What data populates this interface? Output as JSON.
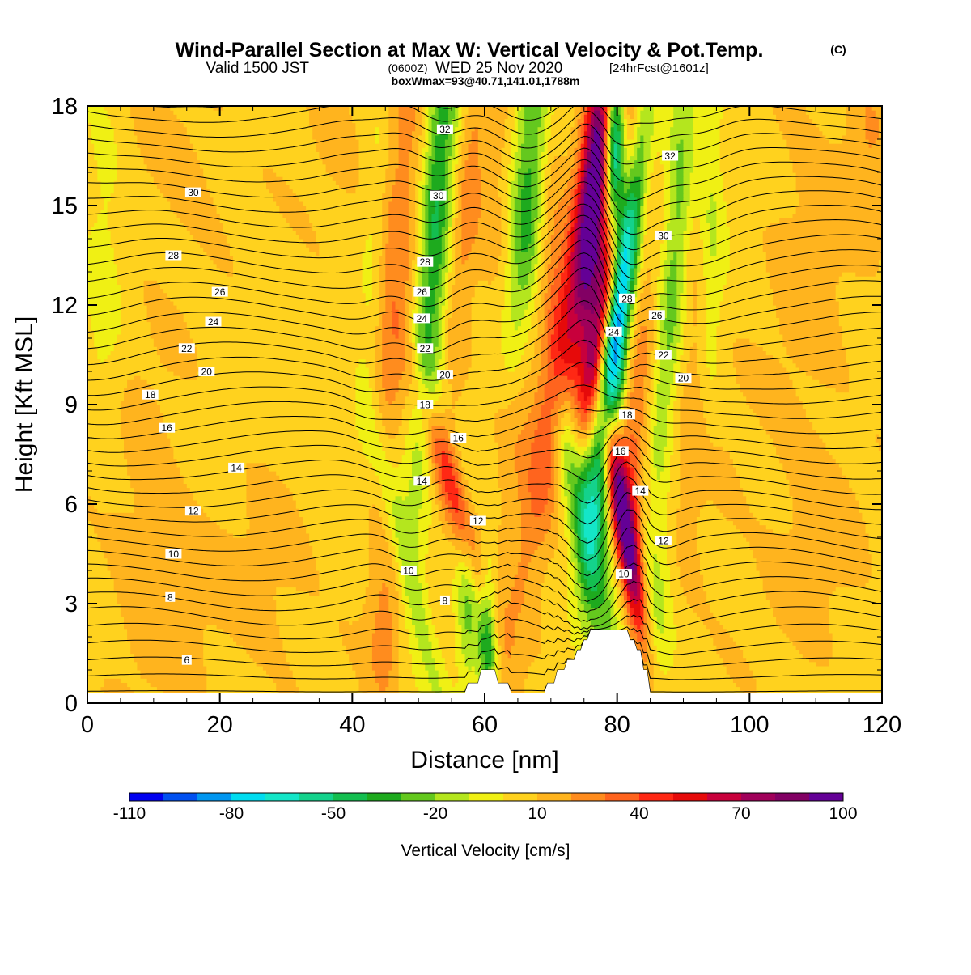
{
  "header": {
    "title_main": "Wind-Parallel Section at Max W: Vertical Velocity & Pot.Temp.",
    "title_tag": "(C)",
    "subtitle_valid": "Valid 1500 JST",
    "subtitle_utc": "(0600Z)",
    "subtitle_date": "WED 25 Nov 2020",
    "subtitle_fcst": "[24hrFcst@1601z]",
    "box_info": "boxWmax=93@40.71,141.01,1788m"
  },
  "chart_data": {
    "type": "heatmap",
    "xlabel": "Distance [nm]",
    "ylabel": "Height [Kft MSL]",
    "xlim": [
      0,
      120
    ],
    "ylim": [
      0,
      18
    ],
    "x_ticks": [
      "0",
      "20",
      "40",
      "60",
      "80",
      "100",
      "120"
    ],
    "y_ticks": [
      "0",
      "3",
      "6",
      "9",
      "12",
      "15",
      "18"
    ],
    "colorbar": {
      "label": "Vertical Velocity [cm/s]",
      "tick_labels": [
        "-110",
        "-80",
        "-50",
        "-20",
        "10",
        "40",
        "70",
        "100"
      ],
      "tick_values": [
        -110,
        -80,
        -50,
        -20,
        10,
        40,
        70,
        100
      ],
      "colors": [
        "#0000f0",
        "#0050f0",
        "#0096f0",
        "#00dcf0",
        "#14e6c8",
        "#14d28c",
        "#14be50",
        "#1eaa1e",
        "#64c81e",
        "#b4e61e",
        "#f0f014",
        "#ffd21e",
        "#ffb41e",
        "#ff8c1e",
        "#ff641e",
        "#ff2814",
        "#e60a0a",
        "#c8003c",
        "#a0005a",
        "#820064",
        "#640096"
      ]
    },
    "terrain": [
      [
        0,
        0.3
      ],
      [
        57,
        0.3
      ],
      [
        57.5,
        0.6
      ],
      [
        59,
        0.6
      ],
      [
        59.5,
        1.0
      ],
      [
        61.5,
        1.0
      ],
      [
        62,
        0.6
      ],
      [
        63.5,
        0.6
      ],
      [
        64,
        0.3
      ],
      [
        69,
        0.3
      ],
      [
        69.5,
        0.6
      ],
      [
        70.5,
        0.6
      ],
      [
        71,
        1.0
      ],
      [
        72,
        1.0
      ],
      [
        72.5,
        1.3
      ],
      [
        73.5,
        1.3
      ],
      [
        74,
        1.6
      ],
      [
        74.5,
        1.6
      ],
      [
        75,
        1.9
      ],
      [
        75.5,
        1.9
      ],
      [
        76,
        2.2
      ],
      [
        81.5,
        2.2
      ],
      [
        82,
        1.9
      ],
      [
        82.5,
        1.9
      ],
      [
        83,
        1.6
      ],
      [
        83.5,
        1.6
      ],
      [
        84,
        1.0
      ],
      [
        84.5,
        1.0
      ],
      [
        85,
        0.3
      ],
      [
        120,
        0.3
      ]
    ],
    "w_features": [
      {
        "x": 2.5,
        "z": 10.5,
        "w": -10,
        "sx": 2.2,
        "sz": 2.8,
        "tilt": 0.0
      },
      {
        "x": 2.5,
        "z": 16.0,
        "w": -8,
        "sx": 2.4,
        "sz": 2.0,
        "tilt": 0.0
      },
      {
        "x": 11.0,
        "z": 3.0,
        "w": 8,
        "sx": 6.0,
        "sz": 2.5,
        "tilt": 0.0
      },
      {
        "x": 15.0,
        "z": 16.5,
        "w": 8,
        "sx": 6.0,
        "sz": 2.0,
        "tilt": 0.0
      },
      {
        "x": 8.0,
        "z": 8.0,
        "w": 6,
        "sx": 6.0,
        "sz": 4.0,
        "tilt": 0.0
      },
      {
        "x": 28.0,
        "z": 3.5,
        "w": 8,
        "sx": 6.0,
        "sz": 2.5,
        "tilt": 0.0
      },
      {
        "x": 38.0,
        "z": 15.5,
        "w": 6,
        "sx": 5.0,
        "sz": 3.0,
        "tilt": 0.0
      },
      {
        "x": 43.0,
        "z": 12.5,
        "w": -16,
        "sx": 1.5,
        "sz": 4.5,
        "tilt": 0.05
      },
      {
        "x": 45.0,
        "z": 2.0,
        "w": 18,
        "sx": 1.8,
        "sz": 1.8,
        "tilt": 0.0
      },
      {
        "x": 47.0,
        "z": 14.0,
        "w": 22,
        "sx": 2.6,
        "sz": 6.0,
        "tilt": 0.1
      },
      {
        "x": 48.5,
        "z": 4.0,
        "w": -22,
        "sx": 1.4,
        "sz": 3.5,
        "tilt": -0.3
      },
      {
        "x": 52.5,
        "z": 14.5,
        "w": -48,
        "sx": 1.8,
        "sz": 5.5,
        "tilt": 0.08
      },
      {
        "x": 55.0,
        "z": 6.5,
        "w": 35,
        "sx": 1.5,
        "sz": 3.0,
        "tilt": -0.4
      },
      {
        "x": 57.0,
        "z": 14.5,
        "w": 18,
        "sx": 1.5,
        "sz": 5.0,
        "tilt": 0.1
      },
      {
        "x": 57.5,
        "z": 3.0,
        "w": -25,
        "sx": 1.2,
        "sz": 2.0,
        "tilt": 0.0
      },
      {
        "x": 60.5,
        "z": 2.0,
        "w": -45,
        "sx": 1.0,
        "sz": 1.8,
        "tilt": 0.0
      },
      {
        "x": 62.0,
        "z": 15.0,
        "w": 10,
        "sx": 2.5,
        "sz": 4.0,
        "tilt": 0.0
      },
      {
        "x": 66.0,
        "z": 10.0,
        "w": 22,
        "sx": 1.8,
        "sz": 3.5,
        "tilt": 0.15
      },
      {
        "x": 66.5,
        "z": 15.0,
        "w": -42,
        "sx": 2.0,
        "sz": 4.5,
        "tilt": 0.06
      },
      {
        "x": 70.0,
        "z": 12.0,
        "w": 14,
        "sx": 1.5,
        "sz": 4.0,
        "tilt": 0.0
      },
      {
        "x": 74.0,
        "z": 13.0,
        "w": 48,
        "sx": 2.2,
        "sz": 6.5,
        "tilt": 0.22
      },
      {
        "x": 75.0,
        "z": 5.5,
        "w": -48,
        "sx": 2.0,
        "sz": 3.5,
        "tilt": -0.25
      },
      {
        "x": 77.0,
        "z": 16.0,
        "w": 72,
        "sx": 1.6,
        "sz": 3.5,
        "tilt": 0.1
      },
      {
        "x": 78.0,
        "z": 12.0,
        "w": 65,
        "sx": 1.3,
        "sz": 3.0,
        "tilt": 0.2
      },
      {
        "x": 80.5,
        "z": 11.5,
        "w": -62,
        "sx": 1.4,
        "sz": 4.5,
        "tilt": 0.15
      },
      {
        "x": 81.0,
        "z": 14.0,
        "w": -78,
        "sx": 1.5,
        "sz": 4.0,
        "tilt": 0.15
      },
      {
        "x": 79.5,
        "z": 17.0,
        "w": -115,
        "sx": 1.2,
        "sz": 2.0,
        "tilt": 0.0
      },
      {
        "x": 81.0,
        "z": 5.5,
        "w": 95,
        "sx": 1.2,
        "sz": 2.5,
        "tilt": -0.2
      },
      {
        "x": 82.5,
        "z": 16.5,
        "w": 55,
        "sx": 1.8,
        "sz": 3.5,
        "tilt": 0.1
      },
      {
        "x": 85.0,
        "z": 11.0,
        "w": 18,
        "sx": 1.8,
        "sz": 3.5,
        "tilt": 0.15
      },
      {
        "x": 82.5,
        "z": 7.0,
        "w": 18,
        "sx": 1.5,
        "sz": 3.0,
        "tilt": 0.0
      },
      {
        "x": 88.5,
        "z": 13.5,
        "w": -38,
        "sx": 1.8,
        "sz": 5.5,
        "tilt": 0.1
      },
      {
        "x": 86.0,
        "z": 3.0,
        "w": -18,
        "sx": 1.8,
        "sz": 2.0,
        "tilt": 0.0
      },
      {
        "x": 92.0,
        "z": 13.5,
        "w": 14,
        "sx": 1.8,
        "sz": 4.5,
        "tilt": 0.05
      },
      {
        "x": 94.0,
        "z": 15.0,
        "w": -22,
        "sx": 1.5,
        "sz": 4.0,
        "tilt": 0.0
      },
      {
        "x": 92.0,
        "z": 6.0,
        "w": 6,
        "sx": 6.0,
        "sz": 4.0,
        "tilt": 0.0
      },
      {
        "x": 110.0,
        "z": 5.0,
        "w": 8,
        "sx": 6.0,
        "sz": 3.0,
        "tilt": 0.0
      },
      {
        "x": 109.0,
        "z": 14.0,
        "w": 9,
        "sx": 5.0,
        "sz": 4.0,
        "tilt": 0.0
      },
      {
        "x": 118.0,
        "z": 17.0,
        "w": 14,
        "sx": 2.5,
        "sz": 2.0,
        "tilt": 0.0
      }
    ],
    "contour_labels": [
      {
        "text": "32",
        "x": 54.0,
        "z": 17.3
      },
      {
        "text": "32",
        "x": 88.0,
        "z": 16.5
      },
      {
        "text": "30",
        "x": 16.0,
        "z": 15.4
      },
      {
        "text": "30",
        "x": 53.0,
        "z": 15.3
      },
      {
        "text": "30",
        "x": 87.0,
        "z": 14.1
      },
      {
        "text": "28",
        "x": 13.0,
        "z": 13.5
      },
      {
        "text": "28",
        "x": 51.0,
        "z": 13.3
      },
      {
        "text": "28",
        "x": 81.5,
        "z": 12.2
      },
      {
        "text": "26",
        "x": 20.0,
        "z": 12.4
      },
      {
        "text": "26",
        "x": 50.5,
        "z": 12.4
      },
      {
        "text": "26",
        "x": 86.0,
        "z": 11.7
      },
      {
        "text": "24",
        "x": 19.0,
        "z": 11.5
      },
      {
        "text": "24",
        "x": 50.5,
        "z": 11.6
      },
      {
        "text": "24",
        "x": 79.5,
        "z": 11.2
      },
      {
        "text": "22",
        "x": 15.0,
        "z": 10.7
      },
      {
        "text": "22",
        "x": 51.0,
        "z": 10.7
      },
      {
        "text": "22",
        "x": 87.0,
        "z": 10.5
      },
      {
        "text": "20",
        "x": 18.0,
        "z": 10.0
      },
      {
        "text": "20",
        "x": 54.0,
        "z": 9.9
      },
      {
        "text": "20",
        "x": 90.0,
        "z": 9.8
      },
      {
        "text": "18",
        "x": 9.5,
        "z": 9.3
      },
      {
        "text": "18",
        "x": 51.0,
        "z": 9.0
      },
      {
        "text": "18",
        "x": 81.5,
        "z": 8.7
      },
      {
        "text": "16",
        "x": 12.0,
        "z": 8.3
      },
      {
        "text": "16",
        "x": 56.0,
        "z": 8.0
      },
      {
        "text": "16",
        "x": 80.5,
        "z": 7.6
      },
      {
        "text": "14",
        "x": 22.5,
        "z": 7.1
      },
      {
        "text": "14",
        "x": 50.5,
        "z": 6.7
      },
      {
        "text": "14",
        "x": 83.5,
        "z": 6.4
      },
      {
        "text": "12",
        "x": 16.0,
        "z": 5.8
      },
      {
        "text": "12",
        "x": 59.0,
        "z": 5.5
      },
      {
        "text": "12",
        "x": 87.0,
        "z": 4.9
      },
      {
        "text": "10",
        "x": 13.0,
        "z": 4.5
      },
      {
        "text": "10",
        "x": 48.5,
        "z": 4.0
      },
      {
        "text": "10",
        "x": 81.0,
        "z": 3.9
      },
      {
        "text": "8",
        "x": 12.5,
        "z": 3.2
      },
      {
        "text": "8",
        "x": 54.0,
        "z": 3.1
      },
      {
        "text": "6",
        "x": 15.0,
        "z": 1.3
      }
    ]
  }
}
